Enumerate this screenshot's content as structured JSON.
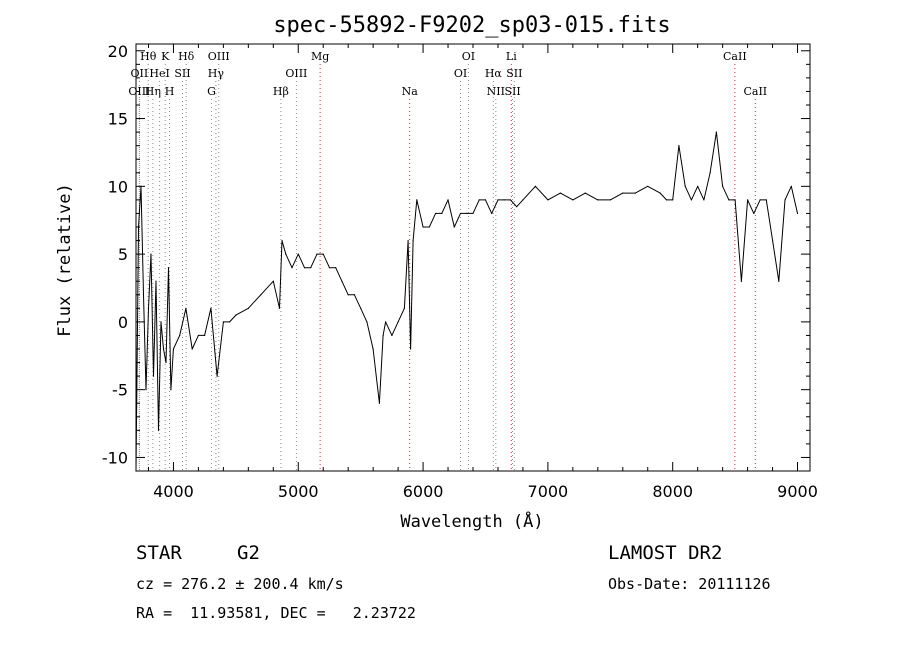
{
  "chart_data": {
    "type": "line",
    "title": "spec-55892-F9202_sp03-015.fits",
    "xlabel": "Wavelength (Å)",
    "ylabel": "Flux (relative)",
    "xlim": [
      3700,
      9100
    ],
    "ylim": [
      -11,
      20.5
    ],
    "xticks": [
      4000,
      5000,
      6000,
      7000,
      8000,
      9000
    ],
    "yticks": [
      -10,
      -5,
      0,
      5,
      10,
      15,
      20
    ],
    "grid": false,
    "series": [
      {
        "color": "#000000",
        "x": [
          3700,
          3720,
          3740,
          3760,
          3780,
          3800,
          3820,
          3840,
          3860,
          3880,
          3900,
          3920,
          3940,
          3960,
          3980,
          4000,
          4050,
          4100,
          4150,
          4200,
          4250,
          4300,
          4350,
          4400,
          4450,
          4500,
          4600,
          4700,
          4800,
          4850,
          4870,
          4900,
          4950,
          5000,
          5050,
          5100,
          5150,
          5200,
          5250,
          5300,
          5350,
          5400,
          5450,
          5500,
          5550,
          5600,
          5650,
          5680,
          5700,
          5750,
          5800,
          5850,
          5880,
          5900,
          5920,
          5950,
          6000,
          6050,
          6100,
          6150,
          6200,
          6250,
          6300,
          6350,
          6400,
          6450,
          6500,
          6550,
          6600,
          6650,
          6700,
          6750,
          6800,
          6900,
          7000,
          7100,
          7200,
          7300,
          7400,
          7500,
          7600,
          7700,
          7800,
          7900,
          7950,
          8000,
          8050,
          8100,
          8150,
          8200,
          8250,
          8300,
          8350,
          8400,
          8450,
          8500,
          8550,
          8600,
          8650,
          8700,
          8750,
          8800,
          8850,
          8900,
          8950,
          9000
        ],
        "y": [
          -11,
          7,
          10,
          2,
          -5,
          1,
          5,
          -4,
          3,
          -8,
          0,
          -2,
          -3,
          4,
          -5,
          -2,
          -1,
          1,
          -2,
          -1,
          -1,
          1,
          -4,
          0,
          0,
          0.5,
          1,
          2,
          3,
          1,
          6,
          5,
          4,
          5,
          4,
          4,
          5,
          5,
          4,
          4,
          3,
          2,
          2,
          1,
          0,
          -2,
          -6,
          -1,
          0,
          -1,
          0,
          1,
          6,
          -2,
          6,
          9,
          7,
          7,
          8,
          8,
          9,
          7,
          8,
          8,
          8,
          9,
          9,
          8,
          9,
          9,
          9,
          8.5,
          9,
          10,
          9,
          9.5,
          9,
          9.5,
          9,
          9,
          9.5,
          9.5,
          10,
          9.5,
          9,
          9,
          13,
          10,
          9,
          10,
          9,
          11,
          14,
          10,
          9,
          9,
          3,
          9,
          8,
          9,
          9,
          6,
          3,
          9,
          10,
          8
        ]
      }
    ],
    "spectral_lines": [
      {
        "label": "Hθ",
        "x": 3798,
        "row": 1,
        "color": "#888888"
      },
      {
        "label": "OII",
        "x": 3727,
        "row": 2,
        "color": "#888888"
      },
      {
        "label": "OIII",
        "x": 3727,
        "row": 3,
        "color": "#888888"
      },
      {
        "label": "K",
        "x": 3934,
        "row": 1,
        "color": "#888888"
      },
      {
        "label": "HeI",
        "x": 3889,
        "row": 2,
        "color": "#888888"
      },
      {
        "label": "Hη",
        "x": 3835,
        "row": 3,
        "color": "#888888"
      },
      {
        "label": "SII",
        "x": 4072,
        "row": 2,
        "color": "#888888"
      },
      {
        "label": "H",
        "x": 3969,
        "row": 3,
        "color": "#888888"
      },
      {
        "label": "Hδ",
        "x": 4102,
        "row": 1,
        "color": "#888888"
      },
      {
        "label": "OIII",
        "x": 4363,
        "row": 1,
        "color": "#888888"
      },
      {
        "label": "Hγ",
        "x": 4340,
        "row": 2,
        "color": "#888888"
      },
      {
        "label": "G",
        "x": 4305,
        "row": 3,
        "color": "#888888"
      },
      {
        "label": "Mg",
        "x": 5175,
        "row": 1,
        "color": "#cc3333"
      },
      {
        "label": "OIII",
        "x": 4985,
        "row": 2,
        "color": "#888888"
      },
      {
        "label": "Hβ",
        "x": 4861,
        "row": 3,
        "color": "#888888"
      },
      {
        "label": "Na",
        "x": 5893,
        "row": 3,
        "color": "#cc3333"
      },
      {
        "label": "OI",
        "x": 6363,
        "row": 1,
        "color": "#888888"
      },
      {
        "label": "OI",
        "x": 6300,
        "row": 2,
        "color": "#888888"
      },
      {
        "label": "Li",
        "x": 6707,
        "row": 1,
        "color": "#cc3333"
      },
      {
        "label": "Hα",
        "x": 6563,
        "row": 2,
        "color": "#888888"
      },
      {
        "label": "SII",
        "x": 6731,
        "row": 2,
        "color": "#888888"
      },
      {
        "label": "NII",
        "x": 6583,
        "row": 3,
        "color": "#888888"
      },
      {
        "label": "SII",
        "x": 6717,
        "row": 3,
        "color": "#888888"
      },
      {
        "label": "CaII",
        "x": 8498,
        "row": 1,
        "color": "#cc3333"
      },
      {
        "label": "CaII",
        "x": 8662,
        "row": 3,
        "color": "#cc3333"
      }
    ]
  },
  "info": {
    "object_class": "STAR",
    "subclass": "G2",
    "survey": "LAMOST DR2",
    "redshift": "cz = 276.2 ± 200.4 km/s",
    "obs_date": "Obs-Date: 20111126",
    "coords": "RA =  11.93581, DEC =   2.23722"
  }
}
